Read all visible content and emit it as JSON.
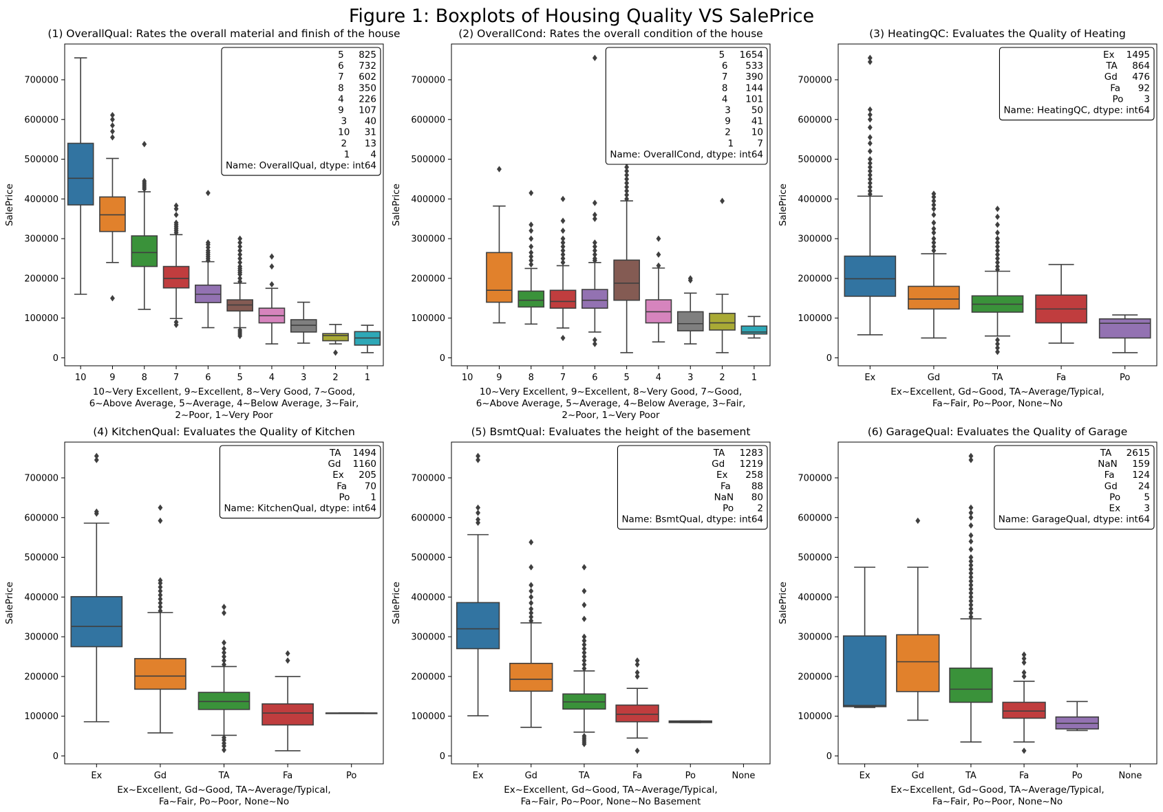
{
  "figure_title": "Figure 1: Boxplots of Housing Quality VS SalePrice",
  "chart_data": [
    {
      "type": "box",
      "title": "(1) OverallQual: Rates the overall material and finish of the house",
      "ylabel": "SalePrice",
      "xlabel_lines": [
        "10~Very Excellent, 9~Excellent, 8~Very Good, 7~Good,",
        "6~Above Average, 5~Average, 4~Below Average, 3~Fair,",
        "2~Poor, 1~Very Poor"
      ],
      "ylim": [
        -20000,
        790000
      ],
      "yticks": [
        0,
        100000,
        200000,
        300000,
        400000,
        500000,
        600000,
        700000
      ],
      "categories": [
        "10",
        "9",
        "8",
        "7",
        "6",
        "5",
        "4",
        "3",
        "2",
        "1"
      ],
      "boxes": [
        {
          "cat": "10",
          "color": "#3274a1",
          "q1": 385000,
          "med": 452000,
          "q3": 540000,
          "wlo": 160000,
          "whi": 755000,
          "outliers": []
        },
        {
          "cat": "9",
          "color": "#e1812c",
          "q1": 318000,
          "med": 360000,
          "q3": 405000,
          "wlo": 240000,
          "whi": 502000,
          "outliers": [
            150000,
            555000,
            570000,
            585000,
            600000,
            611000
          ]
        },
        {
          "cat": "8",
          "color": "#3a923a",
          "q1": 230000,
          "med": 265000,
          "q3": 307000,
          "wlo": 122000,
          "whi": 418000,
          "outliers": [
            425000,
            430000,
            435000,
            440000,
            445000,
            538000
          ]
        },
        {
          "cat": "7",
          "color": "#c03d3e",
          "q1": 176000,
          "med": 200000,
          "q3": 230000,
          "wlo": 99000,
          "whi": 310000,
          "outliers": [
            83000,
            90000,
            315000,
            320000,
            325000,
            330000,
            335000,
            340000,
            360000,
            375000,
            383000
          ]
        },
        {
          "cat": "6",
          "color": "#9372b2",
          "q1": 139000,
          "med": 160000,
          "q3": 183000,
          "wlo": 76000,
          "whi": 242000,
          "outliers": [
            245000,
            250000,
            255000,
            260000,
            265000,
            270000,
            278000,
            285000,
            290000,
            415000
          ]
        },
        {
          "cat": "5",
          "color": "#845b53",
          "q1": 118000,
          "med": 133000,
          "q3": 146000,
          "wlo": 76000,
          "whi": 188000,
          "outliers": [
            55000,
            60000,
            65000,
            70000,
            192000,
            200000,
            210000,
            215000,
            220000,
            225000,
            230000,
            240000,
            250000,
            260000,
            270000,
            280000,
            290000,
            300000
          ]
        },
        {
          "cat": "4",
          "color": "#d684bd",
          "q1": 88000,
          "med": 106000,
          "q3": 125000,
          "wlo": 35000,
          "whi": 175000,
          "outliers": [
            185000,
            230000,
            255000
          ]
        },
        {
          "cat": "3",
          "color": "#7f7f7f",
          "q1": 65000,
          "med": 82000,
          "q3": 96000,
          "wlo": 37000,
          "whi": 140000,
          "outliers": []
        },
        {
          "cat": "2",
          "color": "#a9aa35",
          "q1": 43000,
          "med": 56000,
          "q3": 61000,
          "wlo": 35000,
          "whi": 84000,
          "outliers": [
            13000
          ]
        },
        {
          "cat": "1",
          "color": "#2ea8b7",
          "q1": 32000,
          "med": 50000,
          "q3": 66000,
          "wlo": 13000,
          "whi": 82000,
          "outliers": []
        }
      ],
      "counts_box": [
        "5     825",
        "6     732",
        "7     602",
        "8     350",
        "4     226",
        "9     107",
        "3      40",
        "10     31",
        "2      13",
        "1       4",
        "Name: OverallQual, dtype: int64"
      ]
    },
    {
      "type": "box",
      "title": "(2) OverallCond: Rates the overall condition of the house",
      "ylabel": "SalePrice",
      "xlabel_lines": [
        "10~Very Excellent, 9~Excellent, 8~Very Good, 7~Good,",
        "6~Above Average, 5~Average, 4~Below Average, 3~Fair,",
        "2~Poor, 1~Very Poor"
      ],
      "ylim": [
        -20000,
        790000
      ],
      "yticks": [
        0,
        100000,
        200000,
        300000,
        400000,
        500000,
        600000,
        700000
      ],
      "categories": [
        "10",
        "9",
        "8",
        "7",
        "6",
        "5",
        "4",
        "3",
        "2",
        "1"
      ],
      "boxes": [
        {
          "cat": "9",
          "color": "#e1812c",
          "q1": 140000,
          "med": 170000,
          "q3": 265000,
          "wlo": 88000,
          "whi": 382000,
          "outliers": [
            475000
          ]
        },
        {
          "cat": "8",
          "color": "#3a923a",
          "q1": 128000,
          "med": 145000,
          "q3": 168000,
          "wlo": 85000,
          "whi": 225000,
          "outliers": [
            235000,
            245000,
            255000,
            265000,
            280000,
            300000,
            320000,
            335000,
            415000
          ]
        },
        {
          "cat": "7",
          "color": "#c03d3e",
          "q1": 125000,
          "med": 142000,
          "q3": 170000,
          "wlo": 75000,
          "whi": 232000,
          "outliers": [
            50000,
            240000,
            250000,
            260000,
            270000,
            280000,
            290000,
            300000,
            320000,
            345000,
            400000
          ]
        },
        {
          "cat": "6",
          "color": "#9372b2",
          "q1": 125000,
          "med": 145000,
          "q3": 172000,
          "wlo": 65000,
          "whi": 240000,
          "outliers": [
            35000,
            45000,
            245000,
            250000,
            260000,
            270000,
            280000,
            290000,
            350000,
            360000,
            390000,
            755000
          ]
        },
        {
          "cat": "5",
          "color": "#845b53",
          "q1": 145000,
          "med": 188000,
          "q3": 246000,
          "wlo": 13000,
          "whi": 395000,
          "outliers": [
            400000,
            410000,
            420000,
            430000,
            440000,
            450000,
            460000,
            470000,
            480000,
            490000,
            500000
          ]
        },
        {
          "cat": "4",
          "color": "#d684bd",
          "q1": 88000,
          "med": 116000,
          "q3": 146000,
          "wlo": 40000,
          "whi": 226000,
          "outliers": [
            232000,
            260000,
            300000
          ]
        },
        {
          "cat": "3",
          "color": "#7f7f7f",
          "q1": 68000,
          "med": 86000,
          "q3": 116000,
          "wlo": 35000,
          "whi": 163000,
          "outliers": [
            195000,
            200000
          ]
        },
        {
          "cat": "2",
          "color": "#a9aa35",
          "q1": 70000,
          "med": 88000,
          "q3": 112000,
          "wlo": 13000,
          "whi": 160000,
          "outliers": [
            395000
          ]
        },
        {
          "cat": "1",
          "color": "#2ea8b7",
          "q1": 60000,
          "med": 65000,
          "q3": 80000,
          "wlo": 50000,
          "whi": 104000,
          "outliers": []
        }
      ],
      "counts_box": [
        "5     1654",
        "6      533",
        "7      390",
        "8      144",
        "4      101",
        "3       50",
        "9       41",
        "2       10",
        "1        7",
        "Name: OverallCond, dtype: int64"
      ]
    },
    {
      "type": "box",
      "title": "(3) HeatingQC: Evaluates the Quality of Heating",
      "ylabel": "SalePrice",
      "xlabel_lines": [
        "Ex~Excellent, Gd~Good, TA~Average/Typical,",
        "Fa~Fair, Po~Poor, None~No"
      ],
      "ylim": [
        -20000,
        790000
      ],
      "yticks": [
        0,
        100000,
        200000,
        300000,
        400000,
        500000,
        600000,
        700000
      ],
      "categories": [
        "Ex",
        "Gd",
        "TA",
        "Fa",
        "Po"
      ],
      "boxes": [
        {
          "cat": "Ex",
          "color": "#3274a1",
          "q1": 155000,
          "med": 199000,
          "q3": 256000,
          "wlo": 58000,
          "whi": 407000,
          "outliers": [
            412000,
            420000,
            430000,
            440000,
            450000,
            460000,
            470000,
            480000,
            490000,
            500000,
            520000,
            540000,
            555000,
            580000,
            600000,
            612000,
            625000,
            745000,
            755000
          ]
        },
        {
          "cat": "Gd",
          "color": "#e1812c",
          "q1": 123000,
          "med": 148000,
          "q3": 180000,
          "wlo": 50000,
          "whi": 262000,
          "outliers": [
            270000,
            280000,
            290000,
            300000,
            315000,
            325000,
            340000,
            360000,
            375000,
            385000,
            395000,
            405000,
            413000
          ]
        },
        {
          "cat": "TA",
          "color": "#3a923a",
          "q1": 115000,
          "med": 135000,
          "q3": 156000,
          "wlo": 55000,
          "whi": 218000,
          "outliers": [
            15000,
            25000,
            35000,
            45000,
            222000,
            230000,
            240000,
            250000,
            260000,
            270000,
            280000,
            290000,
            300000,
            315000,
            335000,
            355000,
            375000
          ]
        },
        {
          "cat": "Fa",
          "color": "#c03d3e",
          "q1": 88000,
          "med": 123000,
          "q3": 158000,
          "wlo": 37000,
          "whi": 235000,
          "outliers": []
        },
        {
          "cat": "Po",
          "color": "#9372b2",
          "q1": 50000,
          "med": 87000,
          "q3": 98000,
          "wlo": 13000,
          "whi": 108000,
          "outliers": []
        }
      ],
      "counts_box": [
        "Ex    1495",
        "TA     864",
        "Gd     476",
        "Fa      92",
        "Po       3",
        "Name: HeatingQC, dtype: int64"
      ]
    },
    {
      "type": "box",
      "title": "(4) KitchenQual: Evaluates the Quality of Kitchen",
      "ylabel": "SalePrice",
      "xlabel_lines": [
        "Ex~Excellent, Gd~Good, TA~Average/Typical,",
        "Fa~Fair, Po~Poor, None~No"
      ],
      "ylim": [
        -20000,
        790000
      ],
      "yticks": [
        0,
        100000,
        200000,
        300000,
        400000,
        500000,
        600000,
        700000
      ],
      "categories": [
        "Ex",
        "Gd",
        "TA",
        "Fa",
        "Po"
      ],
      "boxes": [
        {
          "cat": "Ex",
          "color": "#3274a1",
          "q1": 275000,
          "med": 326000,
          "q3": 401000,
          "wlo": 86000,
          "whi": 586000,
          "outliers": [
            610000,
            615000,
            745000,
            755000
          ]
        },
        {
          "cat": "Gd",
          "color": "#e1812c",
          "q1": 168000,
          "med": 201000,
          "q3": 245000,
          "wlo": 58000,
          "whi": 361000,
          "outliers": [
            365000,
            375000,
            385000,
            395000,
            405000,
            415000,
            425000,
            435000,
            442000,
            592000,
            625000
          ]
        },
        {
          "cat": "TA",
          "color": "#3a923a",
          "q1": 117000,
          "med": 137000,
          "q3": 160000,
          "wlo": 52000,
          "whi": 225000,
          "outliers": [
            15000,
            25000,
            32000,
            40000,
            46000,
            230000,
            240000,
            250000,
            260000,
            270000,
            285000,
            360000,
            375000
          ]
        },
        {
          "cat": "Fa",
          "color": "#c03d3e",
          "q1": 78000,
          "med": 108000,
          "q3": 131000,
          "wlo": 13000,
          "whi": 200000,
          "outliers": [
            240000,
            258000
          ]
        },
        {
          "cat": "Po",
          "color": "#9372b2",
          "q1": 108000,
          "med": 108000,
          "q3": 108000,
          "wlo": 108000,
          "whi": 108000,
          "outliers": []
        }
      ],
      "counts_box": [
        "TA    1494",
        "Gd    1160",
        "Ex     205",
        "Fa      70",
        "Po       1",
        "Name: KitchenQual, dtype: int64"
      ]
    },
    {
      "type": "box",
      "title": "(5) BsmtQual: Evaluates the height of the basement",
      "ylabel": "SalePrice",
      "xlabel_lines": [
        "Ex~Excellent, Gd~Good, TA~Average/Typical,",
        "Fa~Fair, Po~Poor, None~No Basement"
      ],
      "ylim": [
        -20000,
        790000
      ],
      "yticks": [
        0,
        100000,
        200000,
        300000,
        400000,
        500000,
        600000,
        700000
      ],
      "categories": [
        "Ex",
        "Gd",
        "TA",
        "Fa",
        "Po",
        "None"
      ],
      "boxes": [
        {
          "cat": "Ex",
          "color": "#3274a1",
          "q1": 270000,
          "med": 320000,
          "q3": 386000,
          "wlo": 101000,
          "whi": 557000,
          "outliers": [
            587000,
            595000,
            612000,
            625000,
            745000,
            755000
          ]
        },
        {
          "cat": "Gd",
          "color": "#e1812c",
          "q1": 163000,
          "med": 193000,
          "q3": 233000,
          "wlo": 72000,
          "whi": 335000,
          "outliers": [
            340000,
            350000,
            360000,
            370000,
            385000,
            400000,
            415000,
            430000,
            475000,
            538000
          ]
        },
        {
          "cat": "TA",
          "color": "#3a923a",
          "q1": 118000,
          "med": 136000,
          "q3": 156000,
          "wlo": 60000,
          "whi": 214000,
          "outliers": [
            30000,
            35000,
            40000,
            45000,
            50000,
            220000,
            230000,
            240000,
            250000,
            260000,
            270000,
            280000,
            290000,
            300000,
            345000,
            380000,
            415000,
            475000
          ]
        },
        {
          "cat": "Fa",
          "color": "#c03d3e",
          "q1": 86000,
          "med": 105000,
          "q3": 128000,
          "wlo": 45000,
          "whi": 170000,
          "outliers": [
            13000,
            200000,
            210000,
            230000,
            240000
          ]
        },
        {
          "cat": "Po",
          "color": "#9372b2",
          "q1": 84000,
          "med": 86000,
          "q3": 88000,
          "wlo": 84000,
          "whi": 88000,
          "outliers": []
        }
      ],
      "counts_box": [
        "TA     1283",
        "Gd     1219",
        "Ex      258",
        "Fa       88",
        "NaN      80",
        "Po        2",
        "Name: BsmtQual, dtype: int64"
      ]
    },
    {
      "type": "box",
      "title": "(6) GarageQual: Evaluates the Quality of Garage",
      "ylabel": "SalePrice",
      "xlabel_lines": [
        "Ex~Excellent, Gd~Good, TA~Average/Typical,",
        "Fa~Fair, Po~Poor, None~No"
      ],
      "ylim": [
        -20000,
        790000
      ],
      "yticks": [
        0,
        100000,
        200000,
        300000,
        400000,
        500000,
        600000,
        700000
      ],
      "categories": [
        "Ex",
        "Gd",
        "TA",
        "Fa",
        "Po",
        "None"
      ],
      "boxes": [
        {
          "cat": "Ex",
          "color": "#3274a1",
          "q1": 124000,
          "med": 127000,
          "q3": 302000,
          "wlo": 122000,
          "whi": 475000,
          "outliers": []
        },
        {
          "cat": "Gd",
          "color": "#e1812c",
          "q1": 162000,
          "med": 237000,
          "q3": 305000,
          "wlo": 90000,
          "whi": 475000,
          "outliers": [
            592000
          ]
        },
        {
          "cat": "TA",
          "color": "#3a923a",
          "q1": 135000,
          "med": 168000,
          "q3": 221000,
          "wlo": 35000,
          "whi": 345000,
          "outliers": [
            350000,
            360000,
            370000,
            380000,
            390000,
            400000,
            410000,
            420000,
            430000,
            440000,
            450000,
            460000,
            470000,
            480000,
            490000,
            500000,
            520000,
            540000,
            555000,
            580000,
            600000,
            612000,
            625000,
            745000,
            755000
          ]
        },
        {
          "cat": "Fa",
          "color": "#c03d3e",
          "q1": 95000,
          "med": 113000,
          "q3": 135000,
          "wlo": 35000,
          "whi": 188000,
          "outliers": [
            13000,
            200000,
            210000,
            235000,
            245000,
            255000
          ]
        },
        {
          "cat": "Po",
          "color": "#9372b2",
          "q1": 68000,
          "med": 82000,
          "q3": 98000,
          "wlo": 64000,
          "whi": 137000,
          "outliers": []
        }
      ],
      "counts_box": [
        "TA     2615",
        "NaN     159",
        "Fa      124",
        "Gd       24",
        "Po        5",
        "Ex        3",
        "Name: GarageQual, dtype: int64"
      ]
    }
  ]
}
